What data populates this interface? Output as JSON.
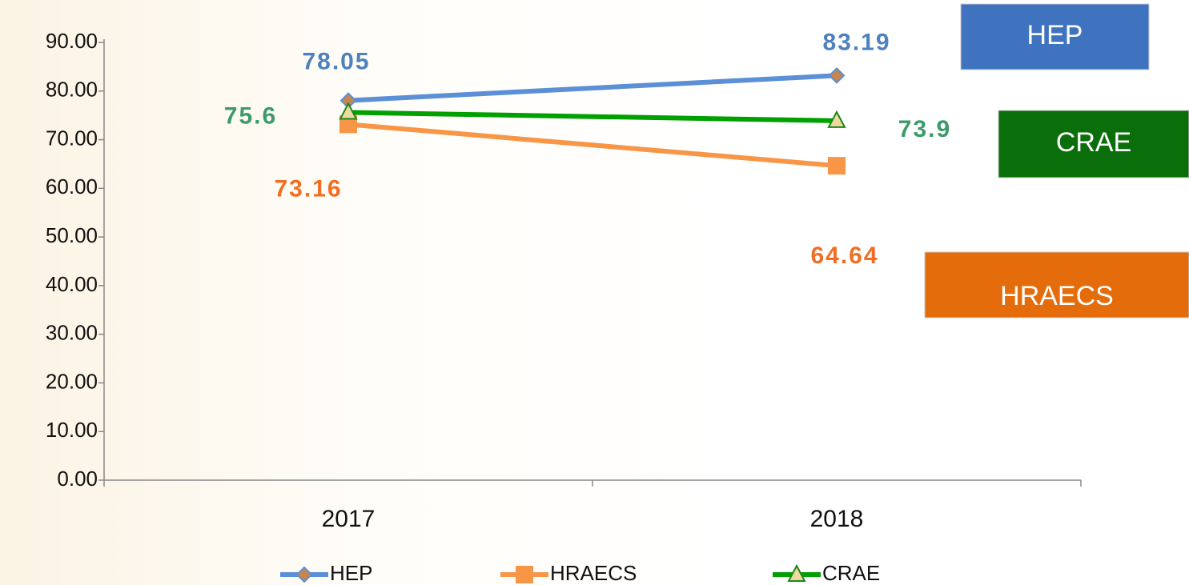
{
  "chart_data": {
    "type": "line",
    "categories": [
      "2017",
      "2018"
    ],
    "series": [
      {
        "name": "HEP",
        "color": "#5b8fd6",
        "marker": "diamond",
        "marker_color": "#c8864e",
        "label_color": "#4f81bd",
        "values": [
          78.05,
          83.19
        ]
      },
      {
        "name": "HRAECS",
        "color": "#f79646",
        "marker": "square",
        "marker_color": "#f79646",
        "label_color": "#f26d21",
        "values": [
          73.16,
          64.64
        ]
      },
      {
        "name": "CRAE",
        "color": "#00a000",
        "marker": "triangle",
        "marker_color": "#f0d8a0",
        "label_color": "#3d9a6a",
        "values": [
          75.6,
          73.9
        ]
      }
    ],
    "ylim": [
      0,
      90
    ],
    "yticks": [
      {
        "value": 0,
        "label": "0.00"
      },
      {
        "value": 10,
        "label": "10.00"
      },
      {
        "value": 20,
        "label": "20.00"
      },
      {
        "value": 30,
        "label": "30.00"
      },
      {
        "value": 40,
        "label": "40.00"
      },
      {
        "value": 50,
        "label": "50.00"
      },
      {
        "value": 60,
        "label": "60.00"
      },
      {
        "value": 70,
        "label": "70.00"
      },
      {
        "value": 80,
        "label": "80.00"
      },
      {
        "value": 90,
        "label": "90.00"
      }
    ],
    "legend": "bottom",
    "annotations": [
      {
        "text": "HEP",
        "color": "#3f73c0"
      },
      {
        "text": "CRAE",
        "color": "#0a6e0a"
      },
      {
        "text": "HRAECS",
        "color": "#e46c0a"
      }
    ]
  }
}
